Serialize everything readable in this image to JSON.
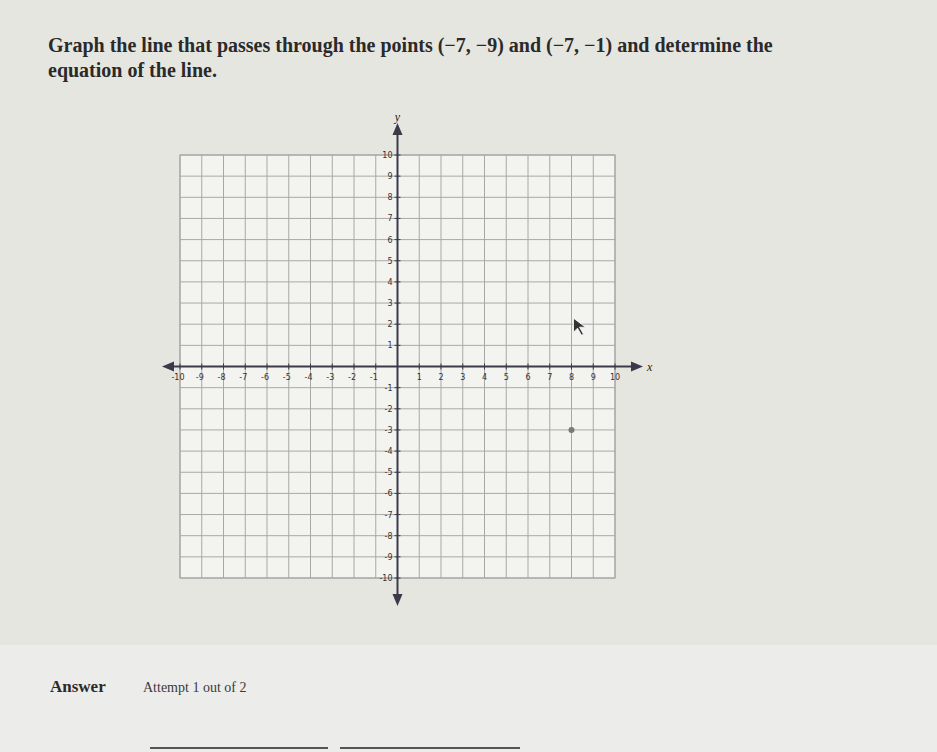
{
  "header": {
    "question_lines": [
      "Graph the line that passes through the points (−7, −9) and (−7, −1) and determine the",
      "equation of the line."
    ]
  },
  "chart_data": {
    "type": "scatter",
    "x_label": "x",
    "y_label": "y",
    "xlim": [
      -10,
      10
    ],
    "ylim": [
      -10,
      10
    ],
    "xticks": [
      -10,
      -9,
      -8,
      -7,
      -6,
      -5,
      -4,
      -3,
      -2,
      -1,
      1,
      2,
      3,
      4,
      5,
      6,
      7,
      8,
      9,
      10
    ],
    "yticks": [
      -10,
      -9,
      -8,
      -7,
      -6,
      -5,
      -4,
      -3,
      -2,
      -1,
      1,
      2,
      3,
      4,
      5,
      6,
      7,
      8,
      9,
      10
    ],
    "grid": true,
    "x": [
      8
    ],
    "values": [
      -3
    ],
    "color": "#7a7a7a",
    "marker": "circle"
  },
  "answer": {
    "label": "Answer",
    "attempt": "Attempt 1 out of 2"
  }
}
